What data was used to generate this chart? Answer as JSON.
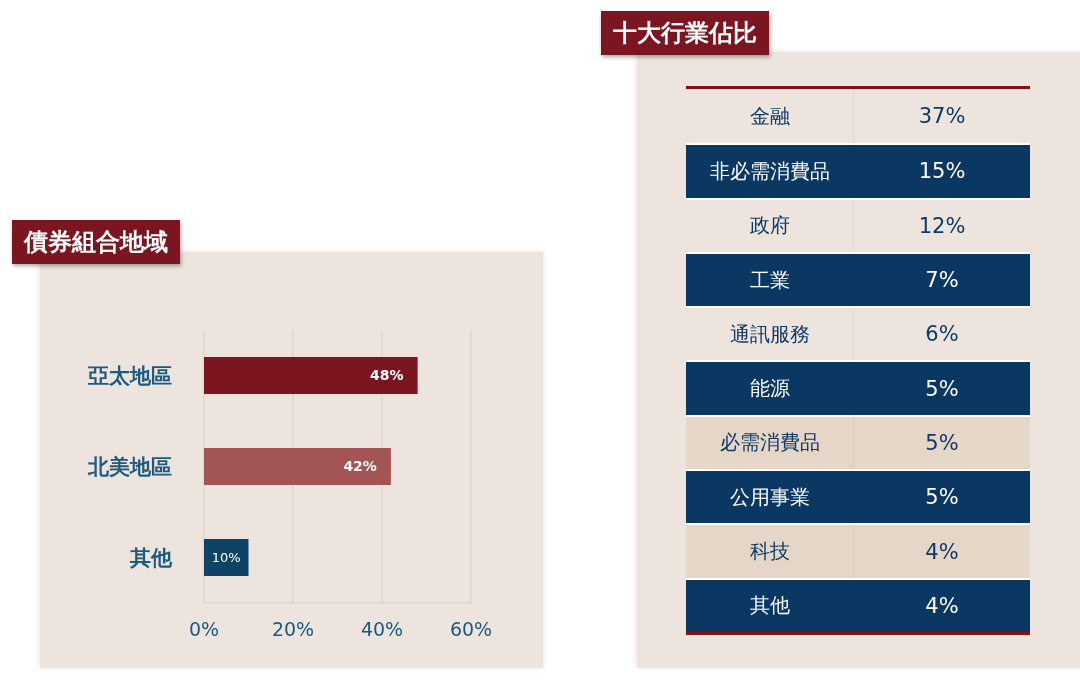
{
  "chart_data": [
    {
      "type": "bar",
      "orientation": "horizontal",
      "title": "債券組合地域",
      "categories": [
        "亞太地區",
        "北美地區",
        "其他"
      ],
      "values": [
        48,
        42,
        10
      ],
      "colors": [
        "#7b1520",
        "#a35454",
        "#0d4466"
      ],
      "value_labels": [
        "48%",
        "42%",
        "10%"
      ],
      "xlim": [
        0,
        60
      ],
      "xticks": [
        {
          "value": 0,
          "label": "0%"
        },
        {
          "value": 20,
          "label": "20%"
        },
        {
          "value": 40,
          "label": "40%"
        },
        {
          "value": 60,
          "label": "60%"
        }
      ],
      "grid": "x"
    },
    {
      "type": "other",
      "title": "十大行業佔比",
      "categories": [
        "金融",
        "非必需消費品",
        "政府",
        "工業",
        "通訊服務",
        "能源",
        "必需消費品",
        "公用事業",
        "科技",
        "其他"
      ],
      "values": [
        37,
        15,
        12,
        7,
        6,
        5,
        5,
        5,
        4,
        4
      ],
      "value_labels": [
        "37%",
        "15%",
        "12%",
        "7%",
        "6%",
        "5%",
        "5%",
        "5%",
        "4%",
        "4%"
      ],
      "colors": [
        "#ece4dd",
        "#0b3763",
        "#ece4dd",
        "#0b3763",
        "#ece4dd",
        "#0b3763",
        "#e5d6c8",
        "#0b3763",
        "#e5d6c8",
        "#0b3763"
      ]
    }
  ]
}
